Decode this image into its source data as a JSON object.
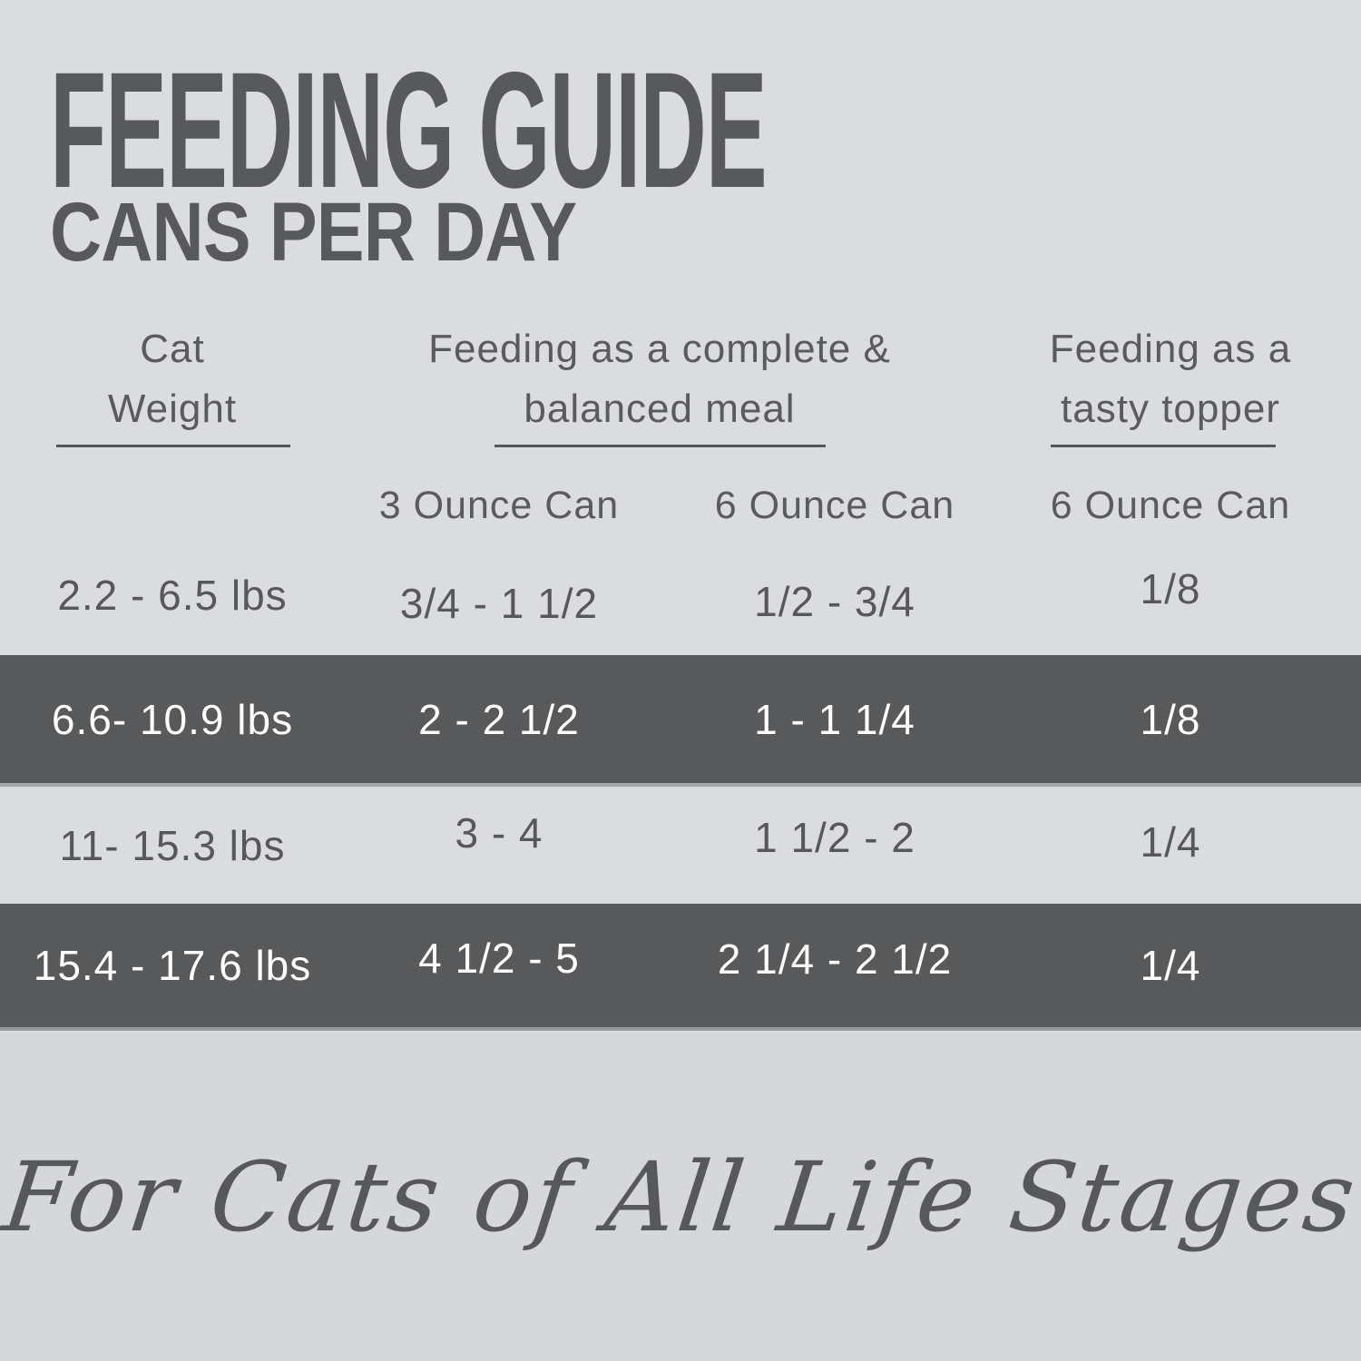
{
  "title": "FEEDING GUIDE",
  "subtitle": "CANS PER DAY",
  "table": {
    "col_headers": [
      {
        "lines": [
          "Cat",
          "Weight"
        ]
      },
      {
        "lines": [
          "Feeding as a complete &",
          "balanced meal"
        ]
      },
      {
        "lines": [
          "Feeding as a",
          "tasty topper"
        ]
      }
    ],
    "sub_headers": [
      "3 Ounce Can",
      "6 Ounce Can",
      "6 Ounce Can"
    ],
    "rows": [
      {
        "weight": "2.2 - 6.5 lbs",
        "complete_3oz": "3/4 - 1 1/2",
        "complete_6oz": "1/2 - 3/4",
        "topper_6oz": "1/8",
        "highlighted": false
      },
      {
        "weight": "6.6- 10.9 lbs",
        "complete_3oz": "2 - 2 1/2",
        "complete_6oz": "1 - 1 1/4",
        "topper_6oz": "1/8",
        "highlighted": true
      },
      {
        "weight": "11- 15.3 lbs",
        "complete_3oz": "3 - 4",
        "complete_6oz": "1 1/2 - 2",
        "topper_6oz": "1/4",
        "highlighted": false
      },
      {
        "weight": "15.4 - 17.6 lbs",
        "complete_3oz": "4 1/2 - 5",
        "complete_6oz": "2 1/4 - 2 1/2",
        "topper_6oz": "1/4",
        "highlighted": true
      }
    ]
  },
  "footer": {
    "tagline": "For Cats of All Life Stages"
  },
  "colors": {
    "background": "#dbdcde",
    "background_bottom": "#d6d7d9",
    "highlight_band": "#58595b",
    "text": "#57585a",
    "band_text": "#ffffff"
  }
}
